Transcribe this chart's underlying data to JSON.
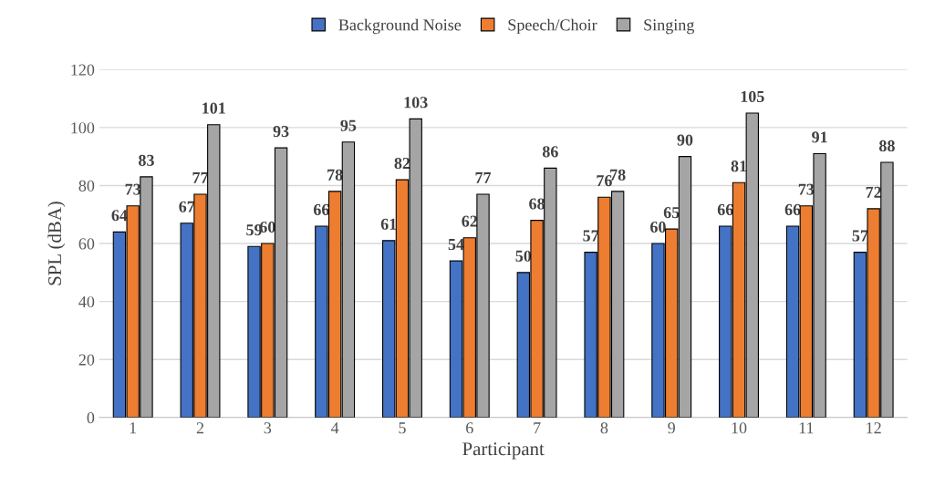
{
  "chart_data": {
    "type": "bar",
    "xlabel": "Participant",
    "ylabel": "SPL (dBA)",
    "categories": [
      "1",
      "2",
      "3",
      "4",
      "5",
      "6",
      "7",
      "8",
      "9",
      "10",
      "11",
      "12"
    ],
    "series": [
      {
        "name": "Background Noise",
        "color": "#4472c4",
        "values": [
          64,
          67,
          59,
          66,
          61,
          54,
          50,
          57,
          60,
          66,
          66,
          57
        ]
      },
      {
        "name": "Speech/Choir",
        "color": "#ed7d31",
        "values": [
          73,
          77,
          60,
          78,
          82,
          62,
          68,
          76,
          65,
          81,
          73,
          72
        ]
      },
      {
        "name": "Singing",
        "color": "#a5a5a5",
        "values": [
          83,
          101,
          93,
          95,
          103,
          77,
          86,
          78,
          90,
          105,
          91,
          88
        ]
      }
    ],
    "ylim": [
      0,
      120
    ],
    "yticks": [
      0,
      20,
      40,
      60,
      80,
      100,
      120
    ],
    "grid": "y",
    "legend": "top",
    "data_labels": true
  }
}
